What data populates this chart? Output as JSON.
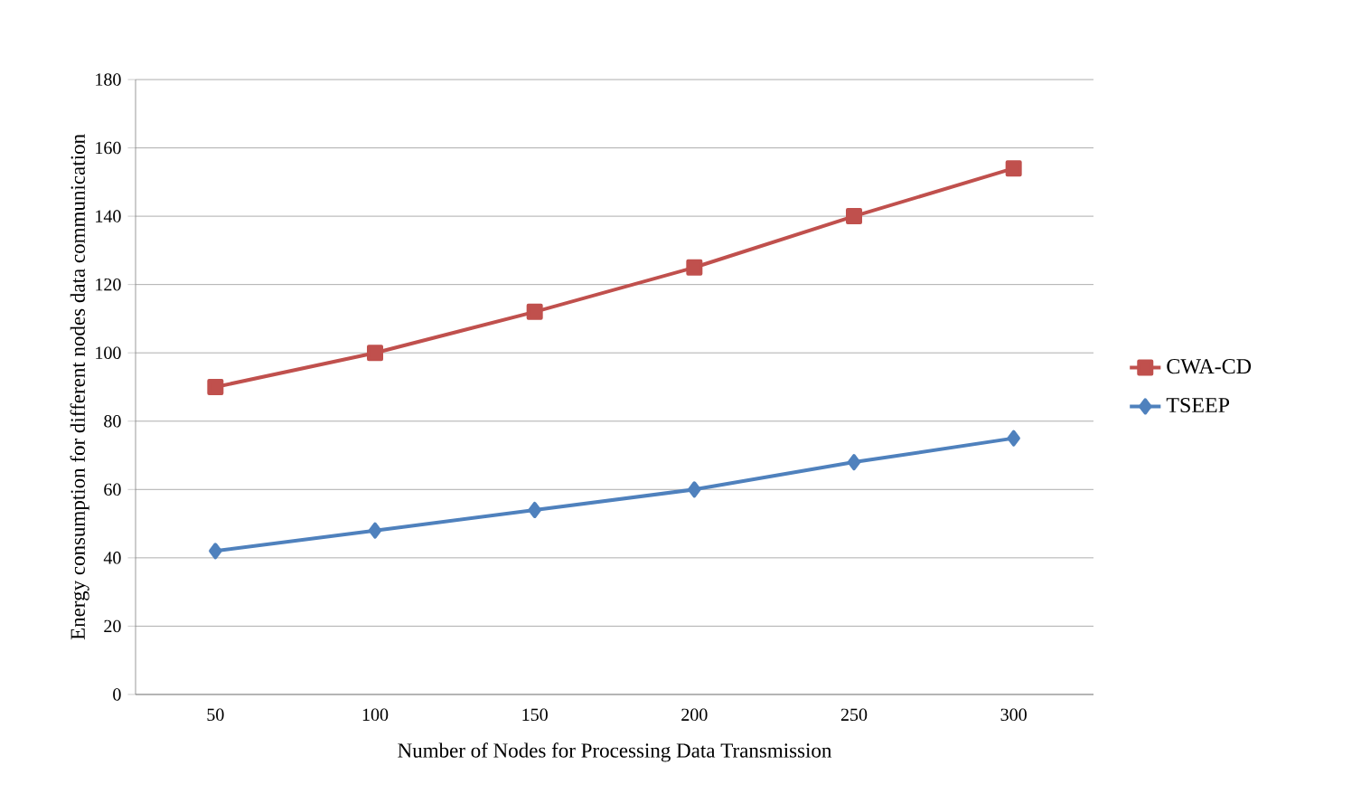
{
  "chart_data": {
    "type": "line",
    "xlabel": "Number of Nodes for Processing Data Transmission",
    "ylabel": "Energy consumption for different nodes data communication",
    "categories": [
      "50",
      "100",
      "150",
      "200",
      "250",
      "300"
    ],
    "series": [
      {
        "name": "CWA-CD",
        "color": "#c0504d",
        "marker": "square",
        "values": [
          90,
          100,
          112,
          125,
          140,
          154
        ]
      },
      {
        "name": "TSEEP",
        "color": "#4f81bd",
        "marker": "diamond",
        "values": [
          42,
          48,
          54,
          60,
          68,
          75
        ]
      }
    ],
    "ylim": [
      0,
      180
    ],
    "yticks": [
      0,
      20,
      40,
      60,
      80,
      100,
      120,
      140,
      160,
      180
    ],
    "grid": "y",
    "legend": "right"
  }
}
